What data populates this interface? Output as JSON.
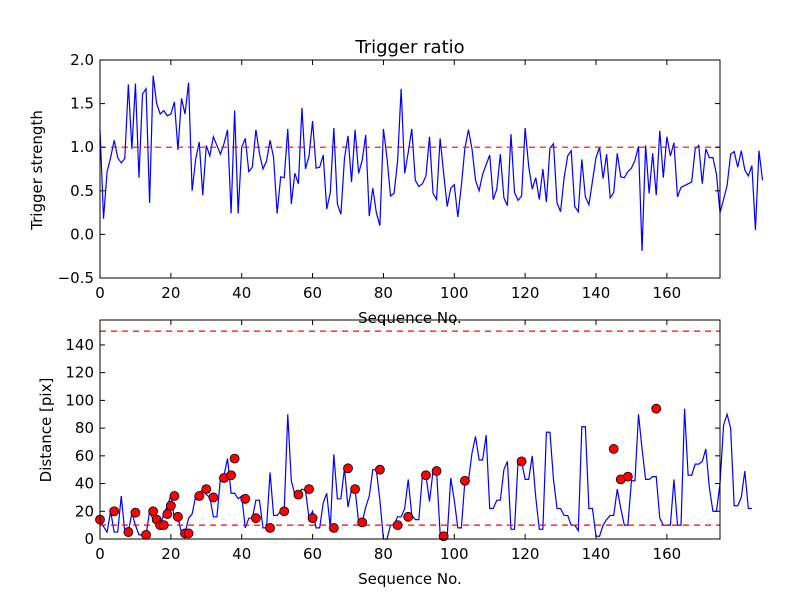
{
  "chart_data": [
    {
      "type": "line",
      "title": "Trigger ratio",
      "xlabel": "Sequence No.",
      "ylabel": "Trigger strength",
      "xlim": [
        0,
        175
      ],
      "ylim": [
        -0.5,
        2.0
      ],
      "xticks": [
        0,
        20,
        40,
        60,
        80,
        100,
        120,
        140,
        160
      ],
      "yticks": [
        -0.5,
        0.0,
        0.5,
        1.0,
        1.5,
        2.0
      ],
      "ytick_labels": [
        "−0.5",
        "0.0",
        "0.5",
        "1.0",
        "1.5",
        "2.0"
      ],
      "series_color": "#0000ff",
      "threshold": {
        "value": 1.0,
        "color": "#ff0000",
        "style": "dashed"
      },
      "series": [
        {
          "values": [
            1.2,
            0.18,
            0.72,
            0.88,
            1.08,
            0.88,
            0.82,
            0.87,
            1.72,
            0.98,
            1.73,
            0.65,
            1.61,
            1.67,
            0.36,
            1.82,
            1.5,
            1.38,
            1.42,
            1.36,
            1.38,
            1.52,
            0.97,
            1.56,
            1.38,
            1.74,
            0.5,
            0.86,
            1.06,
            0.45,
            1.02,
            0.9,
            1.12,
            1.02,
            0.92,
            1.04,
            1.2,
            0.24,
            1.42,
            0.24,
            1.0,
            1.1,
            0.72,
            0.77,
            1.2,
            0.93,
            0.75,
            0.84,
            1.08,
            0.88,
            0.24,
            0.66,
            0.65,
            1.21,
            0.35,
            0.7,
            0.58,
            1.45,
            0.75,
            0.9,
            1.3,
            0.76,
            0.77,
            0.91,
            0.29,
            0.48,
            1.22,
            0.35,
            0.23,
            0.87,
            1.13,
            0.6,
            1.2,
            0.7,
            0.85,
            1.14,
            0.21,
            0.53,
            0.25,
            0.1,
            1.21,
            0.88,
            0.44,
            0.47,
            0.84,
            1.67,
            0.7,
            0.94,
            1.21,
            0.62,
            0.55,
            0.58,
            0.67,
            1.12,
            0.47,
            0.4,
            1.1,
            0.7,
            0.32,
            0.53,
            0.57,
            0.2,
            0.56,
            0.99,
            1.2,
            0.98,
            0.62,
            0.5,
            0.69,
            0.8,
            0.91,
            0.4,
            0.52,
            0.92,
            0.42,
            0.33,
            1.15,
            0.48,
            0.39,
            0.44,
            1.22,
            0.78,
            0.52,
            0.65,
            0.4,
            0.75,
            0.37,
            0.99,
            1.04,
            0.36,
            0.26,
            0.65,
            0.9,
            0.96,
            0.32,
            0.26,
            0.86,
            0.43,
            0.34,
            0.61,
            0.88,
            1.0,
            0.64,
            0.92,
            0.42,
            0.48,
            0.93,
            0.66,
            0.65,
            0.72,
            0.76,
            0.85,
            1.01,
            -0.19,
            1.02,
            0.47,
            0.93,
            0.45,
            1.19,
            0.65,
            1.12,
            0.9,
            1.05,
            0.43,
            0.54,
            0.56,
            0.58,
            0.6,
            0.98,
            1.02,
            0.58,
            0.98,
            0.88,
            0.88,
            0.69,
            0.25,
            0.4,
            0.56,
            0.92,
            0.95,
            0.77,
            0.96,
            0.74,
            0.67,
            0.79,
            0.05,
            0.96,
            0.62
          ]
        }
      ]
    },
    {
      "type": "line",
      "title": "",
      "xlabel": "Sequence No.",
      "ylabel": "Distance [pix]",
      "xlim": [
        0,
        175
      ],
      "ylim": [
        0,
        158
      ],
      "xticks": [
        0,
        20,
        40,
        60,
        80,
        100,
        120,
        140,
        160
      ],
      "yticks": [
        0,
        20,
        40,
        60,
        80,
        100,
        120,
        140
      ],
      "series_color": "#0000ff",
      "marker_color": "#ff0000",
      "thresholds": [
        {
          "value": 150,
          "color": "#ff0000",
          "style": "dashed"
        },
        {
          "value": 10,
          "color": "#ff0000",
          "style": "dashed"
        }
      ],
      "series": [
        {
          "values": [
            14,
            9,
            5,
            20,
            5,
            5,
            31,
            5,
            5,
            19,
            10,
            3,
            3,
            3,
            20,
            14,
            10,
            10,
            18,
            24,
            31,
            15,
            16,
            4,
            4,
            15,
            18,
            31,
            33,
            36,
            32,
            30,
            16,
            16,
            44,
            46,
            58,
            33,
            33,
            29,
            31,
            8,
            15,
            15,
            28,
            28,
            8,
            8,
            48,
            17,
            17,
            20,
            21,
            90,
            42,
            32,
            33,
            36,
            35,
            15,
            20,
            8,
            8,
            26,
            33,
            8,
            61,
            29,
            29,
            51,
            23,
            36,
            36,
            12,
            12,
            23,
            31,
            50,
            50,
            28,
            0,
            0,
            10,
            10,
            16,
            16,
            22,
            43,
            17,
            14,
            14,
            46,
            46,
            27,
            49,
            49,
            4,
            2,
            2,
            44,
            28,
            8,
            8,
            42,
            42,
            62,
            74,
            57,
            57,
            75,
            22,
            22,
            28,
            28,
            50,
            56,
            7,
            7,
            56,
            56,
            43,
            43,
            60,
            30,
            7,
            7,
            77,
            77,
            43,
            22,
            22,
            17,
            17,
            10,
            10,
            6,
            81,
            81,
            22,
            22,
            2,
            2,
            10,
            14,
            17,
            17,
            36,
            22,
            10,
            10,
            42,
            42,
            90,
            65,
            43,
            43,
            45,
            45,
            15,
            10,
            10,
            10,
            43,
            10,
            10,
            94,
            46,
            46,
            54,
            54,
            56,
            65,
            37,
            20,
            20,
            40,
            82,
            90,
            80,
            24,
            24,
            30,
            49,
            22,
            22
          ],
          "markers": [
            [
              0,
              14
            ],
            [
              4,
              20
            ],
            [
              8,
              5
            ],
            [
              10,
              19
            ],
            [
              13,
              3
            ],
            [
              15,
              20
            ],
            [
              16,
              14
            ],
            [
              17,
              10
            ],
            [
              18,
              10
            ],
            [
              19,
              18
            ],
            [
              20,
              24
            ],
            [
              21,
              31
            ],
            [
              22,
              16
            ],
            [
              24,
              4
            ],
            [
              25,
              4
            ],
            [
              28,
              31
            ],
            [
              30,
              36
            ],
            [
              32,
              30
            ],
            [
              35,
              44
            ],
            [
              37,
              46
            ],
            [
              38,
              58
            ],
            [
              41,
              29
            ],
            [
              44,
              15
            ],
            [
              48,
              8
            ],
            [
              52,
              20
            ],
            [
              56,
              32
            ],
            [
              59,
              36
            ],
            [
              60,
              15
            ],
            [
              66,
              8
            ],
            [
              70,
              51
            ],
            [
              72,
              36
            ],
            [
              74,
              12
            ],
            [
              79,
              50
            ],
            [
              84,
              10
            ],
            [
              87,
              16
            ],
            [
              92,
              46
            ],
            [
              95,
              49
            ],
            [
              97,
              2
            ],
            [
              103,
              42
            ],
            [
              119,
              56
            ],
            [
              145,
              65
            ],
            [
              147,
              43
            ],
            [
              149,
              45
            ],
            [
              157,
              94
            ]
          ]
        }
      ]
    }
  ]
}
